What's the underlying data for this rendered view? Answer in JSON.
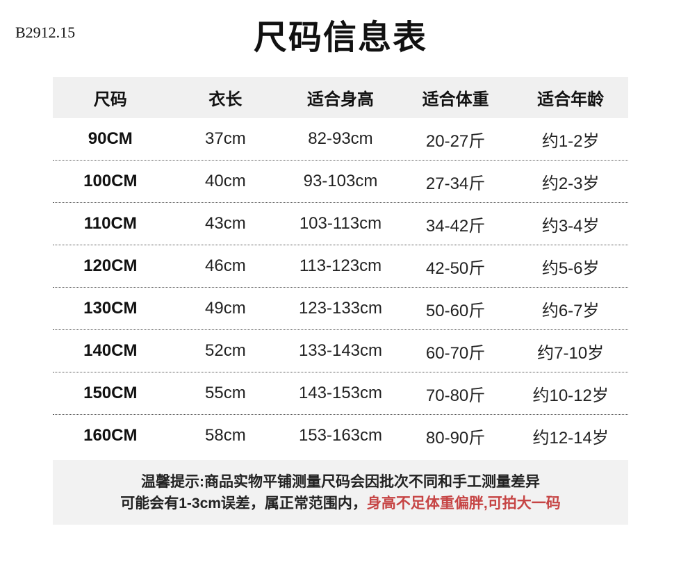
{
  "watermark": "B2912.15",
  "title": "尺码信息表",
  "table": {
    "headers": [
      "尺码",
      "衣长",
      "适合身高",
      "适合体重",
      "适合年龄"
    ],
    "rows": [
      [
        "90CM",
        "37cm",
        "82-93cm",
        "20-27斤",
        "约1-2岁"
      ],
      [
        "100CM",
        "40cm",
        "93-103cm",
        "27-34斤",
        "约2-3岁"
      ],
      [
        "110CM",
        "43cm",
        "103-113cm",
        "34-42斤",
        "约3-4岁"
      ],
      [
        "120CM",
        "46cm",
        "113-123cm",
        "42-50斤",
        "约5-6岁"
      ],
      [
        "130CM",
        "49cm",
        "123-133cm",
        "50-60斤",
        "约6-7岁"
      ],
      [
        "140CM",
        "52cm",
        "133-143cm",
        "60-70斤",
        "约7-10岁"
      ],
      [
        "150CM",
        "55cm",
        "143-153cm",
        "70-80斤",
        "约10-12岁"
      ],
      [
        "160CM",
        "58cm",
        "153-163cm",
        "80-90斤",
        "约12-14岁"
      ]
    ]
  },
  "note": {
    "line1": "温馨提示:商品实物平铺测量尺码会因批次不同和手工测量差异",
    "line2_prefix": "可能会有1-3cm误差，属正常范围内，",
    "line2_highlight": "身高不足体重偏胖,可拍大一码"
  },
  "colors": {
    "header_bg": "#f0f0f0",
    "note_bg": "#f2f2f2",
    "text": "#1a1a1a",
    "red": "#c64444"
  }
}
